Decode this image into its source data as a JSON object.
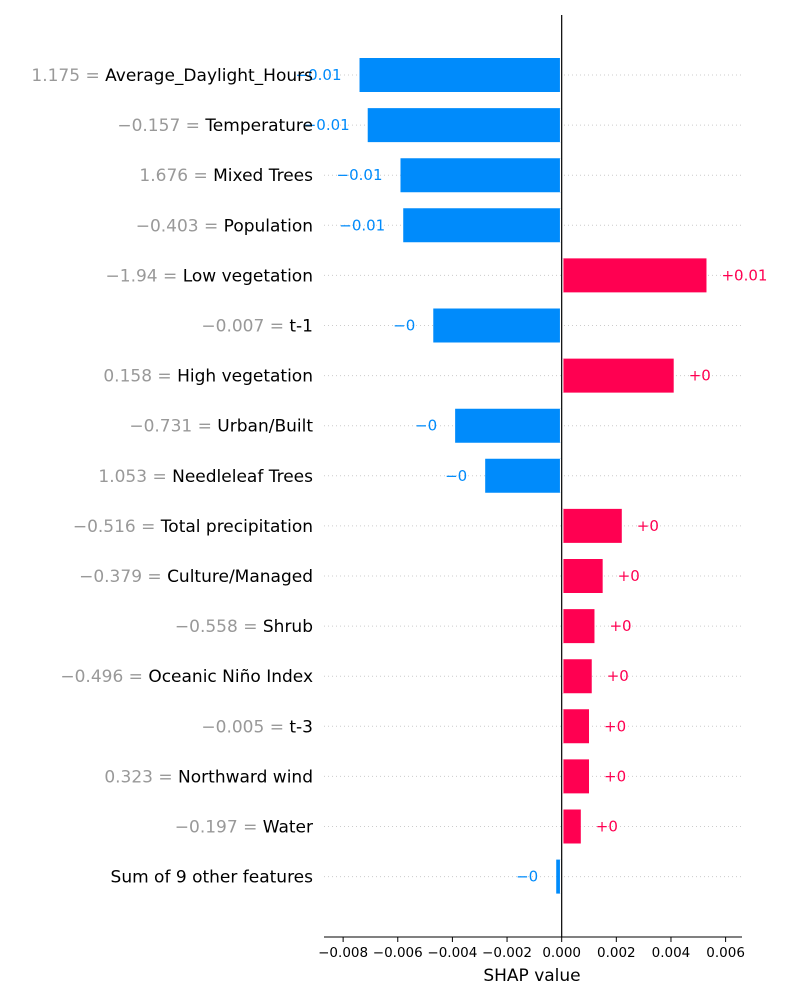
{
  "chart_data": {
    "type": "bar",
    "orientation": "horizontal",
    "xlabel": "SHAP value",
    "xlim": [
      -0.0087,
      0.0066
    ],
    "xticks": [
      -0.008,
      -0.006,
      -0.004,
      -0.002,
      0.0,
      0.002,
      0.004,
      0.006
    ],
    "xtick_labels": [
      "−0.008",
      "−0.006",
      "−0.004",
      "−0.002",
      "0.000",
      "0.002",
      "0.004",
      "0.006"
    ],
    "colors": {
      "positive": "#ff0051",
      "negative": "#008bfb",
      "feature_value": "#999999",
      "feature_name": "#000000"
    },
    "features": [
      {
        "value_text": "1.175 =",
        "name": "Average_Daylight_Hours",
        "shap": -0.0074,
        "label": "−0.01"
      },
      {
        "value_text": "−0.157 =",
        "name": "Temperature",
        "shap": -0.0071,
        "label": "−0.01"
      },
      {
        "value_text": "1.676 =",
        "name": "Mixed Trees",
        "shap": -0.0059,
        "label": "−0.01"
      },
      {
        "value_text": "−0.403 =",
        "name": "Population",
        "shap": -0.0058,
        "label": "−0.01"
      },
      {
        "value_text": "−1.94 =",
        "name": "Low vegetation",
        "shap": 0.0053,
        "label": "+0.01"
      },
      {
        "value_text": "−0.007 =",
        "name": "t-1",
        "shap": -0.0047,
        "label": "−0"
      },
      {
        "value_text": "0.158 =",
        "name": "High vegetation",
        "shap": 0.0041,
        "label": "+0"
      },
      {
        "value_text": "−0.731 =",
        "name": "Urban/Built",
        "shap": -0.0039,
        "label": "−0"
      },
      {
        "value_text": "1.053 =",
        "name": "Needleleaf Trees",
        "shap": -0.0028,
        "label": "−0"
      },
      {
        "value_text": "−0.516 =",
        "name": "Total precipitation",
        "shap": 0.0022,
        "label": "+0"
      },
      {
        "value_text": "−0.379 =",
        "name": "Culture/Managed",
        "shap": 0.0015,
        "label": "+0"
      },
      {
        "value_text": "−0.558 =",
        "name": "Shrub",
        "shap": 0.0012,
        "label": "+0"
      },
      {
        "value_text": "−0.496 =",
        "name": "Oceanic Niño Index",
        "shap": 0.0011,
        "label": "+0"
      },
      {
        "value_text": "−0.005 =",
        "name": "t-3",
        "shap": 0.001,
        "label": "+0"
      },
      {
        "value_text": "0.323 =",
        "name": "Northward wind",
        "shap": 0.001,
        "label": "+0"
      },
      {
        "value_text": "−0.197 =",
        "name": "Water",
        "shap": 0.0007,
        "label": "+0"
      },
      {
        "value_text": "",
        "name": "Sum of 9 other features",
        "shap": -0.0002,
        "label": "−0"
      }
    ]
  }
}
